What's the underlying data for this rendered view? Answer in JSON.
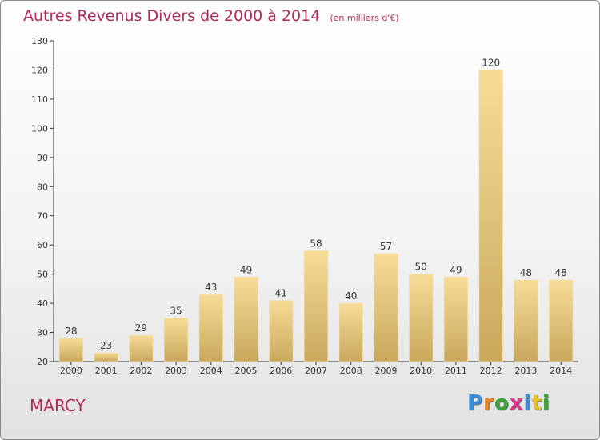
{
  "header": {
    "title": "Autres Revenus Divers de 2000 à 2014",
    "subtitle": "(en milliers d'€)"
  },
  "footer": {
    "location": "MARCY",
    "logo": [
      "P",
      "r",
      "o",
      "x",
      "i",
      "t",
      "i"
    ],
    "logo_colors": [
      "#3b8fd8",
      "#e8842a",
      "#3aa43a",
      "#d83a8a",
      "#3b8fd8",
      "#e8c12a",
      "#3aa43a"
    ]
  },
  "chart_data": {
    "type": "bar",
    "title": "Autres Revenus Divers de 2000 à 2014",
    "subtitle": "(en milliers d'€)",
    "categories": [
      "2000",
      "2001",
      "2002",
      "2003",
      "2004",
      "2005",
      "2006",
      "2007",
      "2008",
      "2009",
      "2010",
      "2011",
      "2012",
      "2013",
      "2014"
    ],
    "values": [
      28,
      23,
      29,
      35,
      43,
      49,
      41,
      58,
      40,
      57,
      50,
      49,
      120,
      48,
      48
    ],
    "ylim": [
      20,
      130
    ],
    "yticks": [
      20,
      30,
      40,
      50,
      60,
      70,
      80,
      90,
      100,
      110,
      120,
      130
    ],
    "grid": false,
    "bar_color": "#e8c878"
  }
}
